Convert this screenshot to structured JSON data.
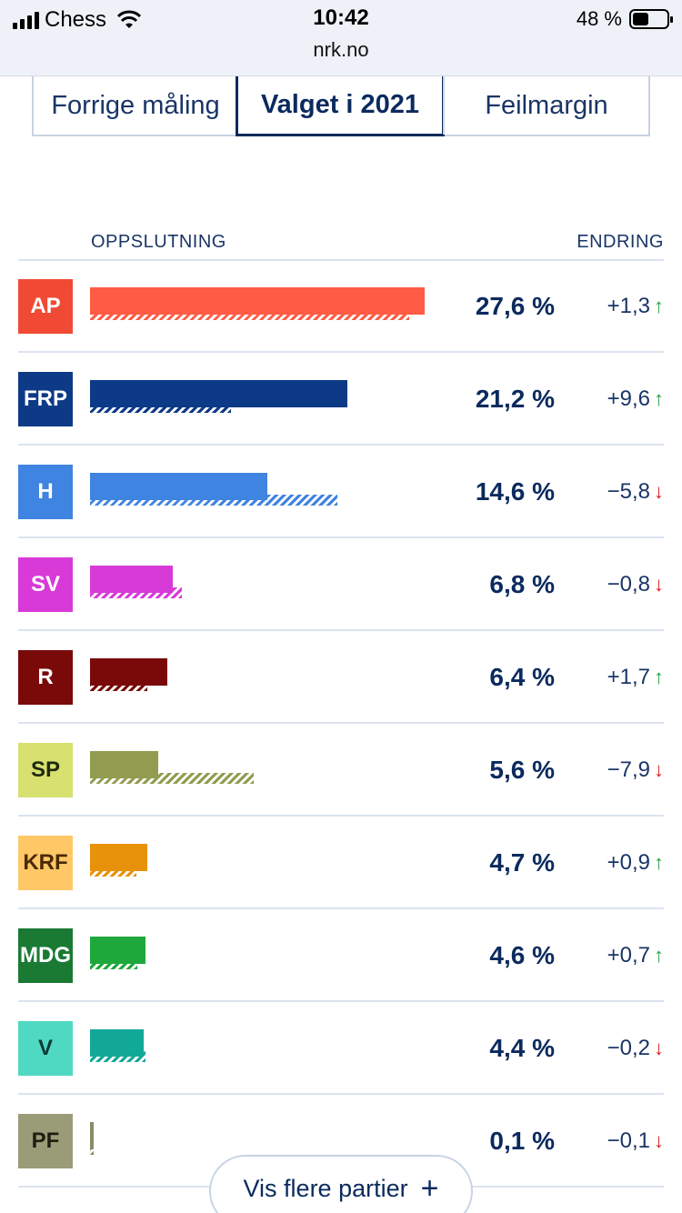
{
  "status": {
    "carrier": "Chess",
    "time": "10:42",
    "url": "nrk.no",
    "battery": "48 %"
  },
  "tabs": [
    {
      "label": "Forrige måling",
      "active": false
    },
    {
      "label": "Valget i 2021",
      "active": true
    },
    {
      "label": "Feilmargin",
      "active": false
    }
  ],
  "headers": {
    "support": "OPPSLUTNING",
    "change": "ENDRING"
  },
  "parties": [
    {
      "code": "AP",
      "percent": "27,6 %",
      "change": "+1,3",
      "direction": "up",
      "value": 27.6,
      "previous": 26.3,
      "badge_bg": "#f04a34",
      "badge_fg": "#ffffff",
      "bar_color": "#ff5b45"
    },
    {
      "code": "FRP",
      "percent": "21,2 %",
      "change": "+9,6",
      "direction": "up",
      "value": 21.2,
      "previous": 11.6,
      "badge_bg": "#0d3a86",
      "badge_fg": "#ffffff",
      "bar_color": "#0d3a86"
    },
    {
      "code": "H",
      "percent": "14,6 %",
      "change": "−5,8",
      "direction": "down",
      "value": 14.6,
      "previous": 20.4,
      "badge_bg": "#3f84e0",
      "badge_fg": "#ffffff",
      "bar_color": "#3f84e0"
    },
    {
      "code": "SV",
      "percent": "6,8 %",
      "change": "−0,8",
      "direction": "down",
      "value": 6.8,
      "previous": 7.6,
      "badge_bg": "#d83ad8",
      "badge_fg": "#ffffff",
      "bar_color": "#d83ad8"
    },
    {
      "code": "R",
      "percent": "6,4 %",
      "change": "+1,7",
      "direction": "up",
      "value": 6.4,
      "previous": 4.7,
      "badge_bg": "#7a0a0a",
      "badge_fg": "#ffffff",
      "bar_color": "#7a0a0a"
    },
    {
      "code": "SP",
      "percent": "5,6 %",
      "change": "−7,9",
      "direction": "down",
      "value": 5.6,
      "previous": 13.5,
      "badge_bg": "#d8e070",
      "badge_fg": "#1f2a10",
      "bar_color": "#929c50"
    },
    {
      "code": "KRF",
      "percent": "4,7 %",
      "change": "+0,9",
      "direction": "up",
      "value": 4.7,
      "previous": 3.8,
      "badge_bg": "#ffc766",
      "badge_fg": "#4a2a05",
      "bar_color": "#e8920b"
    },
    {
      "code": "MDG",
      "percent": "4,6 %",
      "change": "+0,7",
      "direction": "up",
      "value": 4.6,
      "previous": 3.9,
      "badge_bg": "#1a7a34",
      "badge_fg": "#ffffff",
      "bar_color": "#1ea83c"
    },
    {
      "code": "V",
      "percent": "4,4 %",
      "change": "−0,2",
      "direction": "down",
      "value": 4.4,
      "previous": 4.6,
      "badge_bg": "#4fd9c2",
      "badge_fg": "#0b3a34",
      "bar_color": "#12a898"
    },
    {
      "code": "PF",
      "percent": "0,1 %",
      "change": "−0,1",
      "direction": "down",
      "value": 0.1,
      "previous": 0.2,
      "badge_bg": "#9a9c78",
      "badge_fg": "#1d1f10",
      "bar_color": "#8a8c68"
    }
  ],
  "more_button": {
    "label": "Vis flere partier",
    "icon": "plus-icon"
  }
}
